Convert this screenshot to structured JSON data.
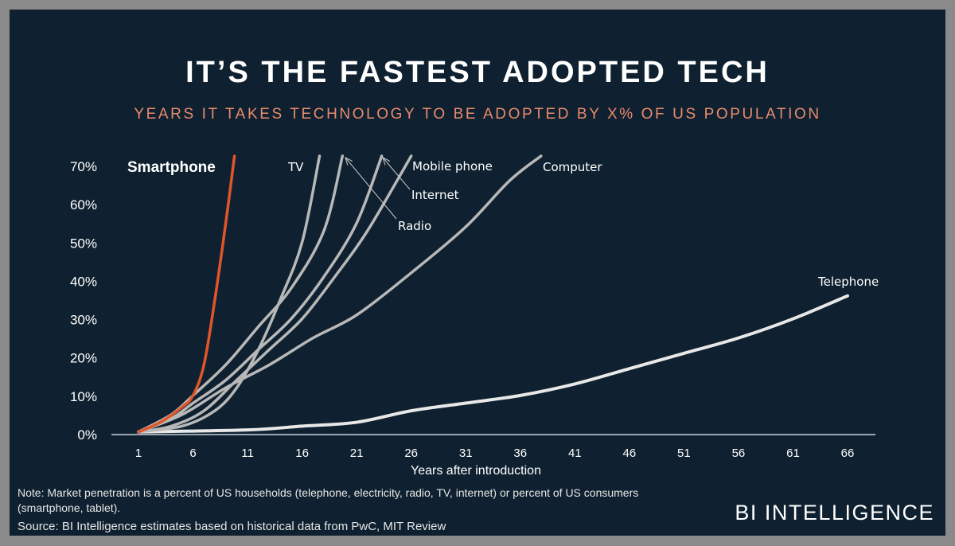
{
  "title": "IT’S THE FASTEST ADOPTED TECH",
  "subtitle": "YEARS IT TAKES TECHNOLOGY TO BE ADOPTED BY X% OF US POPULATION",
  "note": "Note: Market penetration is a percent of US households (telephone, electricity, radio, TV, internet) or percent of US consumers",
  "note_cont": "(smartphone, tablet).",
  "source": "Source: BI Intelligence estimates based on historical data from PwC, MIT Review",
  "brand": "BI INTELLIGENCE",
  "chart_data": {
    "type": "line",
    "title": "YEARS IT TAKES TECHNOLOGY TO BE ADOPTED BY X% OF US POPULATION",
    "xlabel": "Years after introduction",
    "ylabel": "",
    "xlim": [
      1,
      66
    ],
    "ylim": [
      0,
      70
    ],
    "xticks": [
      "1",
      "6",
      "11",
      "16",
      "21",
      "26",
      "31",
      "36",
      "41",
      "46",
      "51",
      "56",
      "61",
      "66"
    ],
    "yticks": [
      "0%",
      "10%",
      "20%",
      "30%",
      "40%",
      "50%",
      "60%",
      "70%"
    ],
    "grid": false,
    "series": [
      {
        "name": "Smartphone",
        "color": "#e0552a",
        "points": [
          [
            1,
            0.5
          ],
          [
            3,
            3
          ],
          [
            5,
            7
          ],
          [
            6,
            10
          ],
          [
            7,
            18
          ],
          [
            8,
            35
          ],
          [
            9,
            55
          ],
          [
            9.8,
            72.5
          ]
        ]
      },
      {
        "name": "TV",
        "color": "#b8b8b8",
        "points": [
          [
            1,
            0.5
          ],
          [
            5,
            2
          ],
          [
            8,
            6
          ],
          [
            10,
            12
          ],
          [
            12,
            22
          ],
          [
            14,
            35
          ],
          [
            16,
            50
          ],
          [
            17.6,
            72.5
          ]
        ]
      },
      {
        "name": "Radio",
        "color": "#b8b8b8",
        "points": [
          [
            1,
            0.5
          ],
          [
            4,
            5
          ],
          [
            6,
            10
          ],
          [
            9,
            18
          ],
          [
            12,
            28
          ],
          [
            15,
            38
          ],
          [
            18,
            53
          ],
          [
            19.7,
            72.5
          ]
        ]
      },
      {
        "name": "Internet",
        "color": "#b8b8b8",
        "points": [
          [
            1,
            0.5
          ],
          [
            4,
            4
          ],
          [
            6,
            8
          ],
          [
            9,
            14
          ],
          [
            12,
            22
          ],
          [
            15,
            30
          ],
          [
            18,
            41
          ],
          [
            21,
            55
          ],
          [
            23.3,
            72.5
          ]
        ]
      },
      {
        "name": "Mobile phone",
        "color": "#b8b8b8",
        "points": [
          [
            1,
            0.5
          ],
          [
            4,
            2
          ],
          [
            7,
            6
          ],
          [
            10,
            14
          ],
          [
            13,
            22
          ],
          [
            16,
            30
          ],
          [
            19,
            41
          ],
          [
            22,
            53
          ],
          [
            26,
            72.5
          ]
        ]
      },
      {
        "name": "Computer",
        "color": "#b8b8b8",
        "points": [
          [
            1,
            0.5
          ],
          [
            5,
            5
          ],
          [
            9,
            12
          ],
          [
            13,
            18
          ],
          [
            17,
            25
          ],
          [
            21,
            31
          ],
          [
            26,
            42
          ],
          [
            31,
            54
          ],
          [
            35,
            66
          ],
          [
            37.9,
            72.5
          ]
        ]
      },
      {
        "name": "Telephone",
        "color": "#e8e8e8",
        "points": [
          [
            1,
            0.5
          ],
          [
            11,
            1
          ],
          [
            16,
            2
          ],
          [
            21,
            3
          ],
          [
            26,
            6
          ],
          [
            31,
            8
          ],
          [
            36,
            10
          ],
          [
            41,
            13
          ],
          [
            46,
            17
          ],
          [
            51,
            21
          ],
          [
            56,
            25
          ],
          [
            61,
            30
          ],
          [
            66,
            36
          ]
        ]
      }
    ]
  }
}
